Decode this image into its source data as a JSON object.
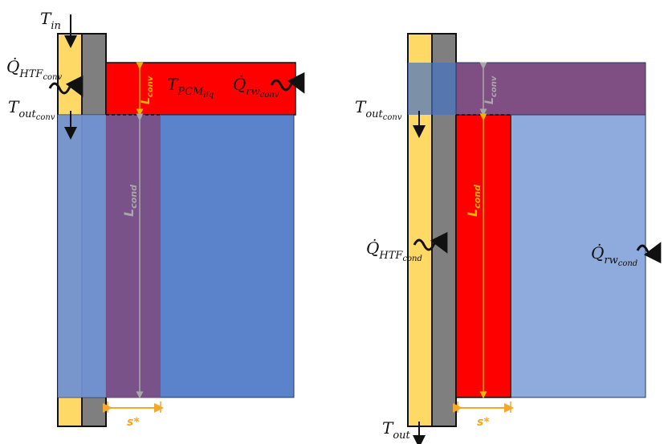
{
  "left_panel": {
    "T_in": {
      "base": "T",
      "sub": "in"
    },
    "Q_HTF_conv": {
      "base": "Q̇",
      "sub": "HTF",
      "subsub": "conv"
    },
    "T_out_conv": {
      "base": "T",
      "sub": "out",
      "subsub": "conv"
    },
    "T_PCM_liq": {
      "base": "T",
      "sub": "PCM",
      "subsub": "liq"
    },
    "Q_rw_conv": {
      "base": "Q̇",
      "sub": "rw",
      "subsub": "conv"
    },
    "L_conv": {
      "base": "L",
      "sub": "conv"
    },
    "L_cond": {
      "base": "L",
      "sub": "cond"
    },
    "s_star": "s*"
  },
  "right_panel": {
    "T_out_conv": {
      "base": "T",
      "sub": "out",
      "subsub": "conv"
    },
    "Q_HTF_cond": {
      "base": "Q̇",
      "sub": "HTF",
      "subsub": "cond"
    },
    "Q_rw_cond": {
      "base": "Q̇",
      "sub": "rw",
      "subsub": "cond"
    },
    "T_out": {
      "base": "T",
      "sub": "out"
    },
    "L_conv": {
      "base": "L",
      "sub": "conv"
    },
    "L_cond": {
      "base": "L",
      "sub": "cond"
    },
    "s_star": "s*"
  },
  "colors": {
    "htf_yellow": "#ffd966",
    "wall_gray": "#7f7f7f",
    "pcm_red": "#ff0000",
    "solid_blue": "#4472c4",
    "light_blue": "#8faadc",
    "overlay_purple": "#7e4a7e",
    "dim_orange": "#f4b183",
    "dim_gold": "#f0b400"
  }
}
